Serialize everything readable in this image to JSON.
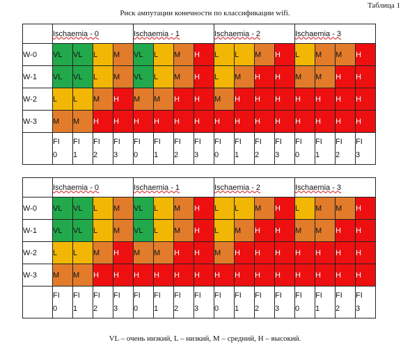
{
  "table_label": "Таблица 1",
  "title": "Риск ампутации конечности по классификации wifi.",
  "caption": "VL – очень низкий, L – низкий, M – средний, H – высокий.",
  "colors": {
    "VL": "#22a94b",
    "L": "#f2b705",
    "M": "#e27c2b",
    "H": "#ee1010"
  },
  "tables": [
    {
      "groups": [
        "Ischaemia - 0",
        "Ischaemia - 1",
        "Ischaemia - 2",
        "Ischaemia - 3"
      ],
      "rows": [
        {
          "label": "W-0",
          "cells": [
            "VL",
            "VL",
            "L",
            "M",
            "VL",
            "L",
            "M",
            "H",
            "L",
            "L",
            "M",
            "H",
            "L",
            "M",
            "M",
            "H"
          ]
        },
        {
          "label": "W-1",
          "cells": [
            "VL",
            "VL",
            "L",
            "M",
            "VL",
            "L",
            "M",
            "H",
            "L",
            "M",
            "H",
            "H",
            "M",
            "M",
            "H",
            "H"
          ]
        },
        {
          "label": "W-2",
          "cells": [
            "L",
            "L",
            "M",
            "H",
            "M",
            "M",
            "H",
            "H",
            "M",
            "H",
            "H",
            "H",
            "H",
            "H",
            "H",
            "H"
          ]
        },
        {
          "label": "W-3",
          "cells": [
            "M",
            "M",
            "H",
            "H",
            "H",
            "H",
            "H",
            "H",
            "H",
            "H",
            "H",
            "H",
            "H",
            "H",
            "H",
            "H"
          ]
        }
      ],
      "fi": [
        [
          "FI",
          "0"
        ],
        [
          "FI",
          "1"
        ],
        [
          "FI",
          "2"
        ],
        [
          "FI",
          "3"
        ],
        [
          "FI",
          "0"
        ],
        [
          "FI",
          "1"
        ],
        [
          "FI",
          "2"
        ],
        [
          "FI",
          "3"
        ],
        [
          "FI",
          "0"
        ],
        [
          "FI",
          "1"
        ],
        [
          "FI",
          "2"
        ],
        [
          "FI",
          "3"
        ],
        [
          "FI",
          "0"
        ],
        [
          "FI",
          "1"
        ],
        [
          "FI",
          "2"
        ],
        [
          "FI",
          "3"
        ]
      ]
    },
    {
      "groups": [
        "Ischaemia - 0",
        "Ischaemia - 1",
        "Ischaemia - 2",
        "Ischaemia - 3"
      ],
      "rows": [
        {
          "label": "W-0",
          "cells": [
            "VL",
            "VL",
            "L",
            "M",
            "VL",
            "L",
            "M",
            "H",
            "L",
            "L",
            "M",
            "H",
            "L",
            "M",
            "M",
            "H"
          ]
        },
        {
          "label": "W-1",
          "cells": [
            "VL",
            "VL",
            "L",
            "M",
            "VL",
            "L",
            "M",
            "H",
            "L",
            "M",
            "H",
            "H",
            "M",
            "M",
            "H",
            "H"
          ]
        },
        {
          "label": "W-2",
          "cells": [
            "L",
            "L",
            "M",
            "H",
            "M",
            "M",
            "H",
            "H",
            "M",
            "H",
            "H",
            "H",
            "H",
            "H",
            "H",
            "H"
          ]
        },
        {
          "label": "W-3",
          "cells": [
            "M",
            "M",
            "H",
            "H",
            "H",
            "H",
            "H",
            "H",
            "H",
            "H",
            "H",
            "H",
            "H",
            "H",
            "H",
            "H"
          ]
        }
      ],
      "fi": [
        [
          "FI",
          "0"
        ],
        [
          "FI",
          "1"
        ],
        [
          "FI",
          "2"
        ],
        [
          "FI",
          "3"
        ],
        [
          "FI",
          "0"
        ],
        [
          "FI",
          "1"
        ],
        [
          "FI",
          "2"
        ],
        [
          "FI",
          "3"
        ],
        [
          "FI",
          "0"
        ],
        [
          "FI",
          "1"
        ],
        [
          "FI",
          "2"
        ],
        [
          "FI",
          "3"
        ],
        [
          "FI",
          "0"
        ],
        [
          "FI",
          "1"
        ],
        [
          "FI",
          "2"
        ],
        [
          "FI",
          "3"
        ]
      ]
    }
  ]
}
